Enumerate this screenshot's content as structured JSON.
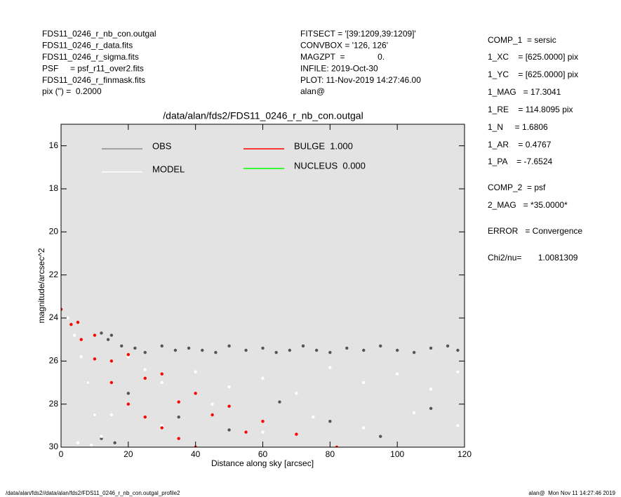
{
  "chart_data": {
    "type": "scatter",
    "title": "/data/alan/fds2/FDS11_0246_r_nb_con.outgal",
    "x_label": "Distance along sky [arcsec]",
    "y_label": "magnitude/arcsec^2",
    "xlim": [
      0,
      120
    ],
    "ylim": [
      30,
      15
    ],
    "xticks": [
      0,
      20,
      40,
      60,
      80,
      100,
      120
    ],
    "yticks": [
      16,
      18,
      20,
      22,
      24,
      26,
      28,
      30
    ],
    "plot_background": "#e3e3e3",
    "series": [
      {
        "name": "OBS",
        "color": "#555555",
        "legend_color": "#8c8c8c",
        "x": [
          10,
          12,
          14,
          15,
          18,
          22,
          25,
          30,
          34,
          38,
          42,
          46,
          50,
          55,
          60,
          64,
          68,
          72,
          76,
          80,
          85,
          90,
          95,
          100,
          105,
          110,
          115,
          118,
          20,
          35,
          50,
          65,
          80,
          95,
          110,
          8,
          12,
          16
        ],
        "y": [
          28.5,
          24.7,
          25.0,
          24.8,
          25.3,
          25.4,
          25.6,
          25.3,
          25.5,
          25.4,
          25.5,
          25.6,
          25.3,
          25.5,
          25.4,
          25.6,
          25.5,
          25.3,
          25.5,
          25.6,
          25.4,
          25.5,
          25.3,
          25.5,
          25.6,
          25.4,
          25.3,
          25.5,
          27.5,
          28.6,
          29.2,
          27.9,
          28.8,
          29.5,
          28.2,
          27.0,
          29.6,
          29.8
        ]
      },
      {
        "name": "MODEL",
        "color": "#ffffff",
        "legend_color": "#ffffff",
        "x": [
          2,
          4,
          6,
          8,
          10,
          12,
          15,
          20,
          25,
          30,
          40,
          50,
          60,
          70,
          80,
          90,
          100,
          110,
          118,
          15,
          30,
          45,
          60,
          75,
          90,
          105,
          118,
          5,
          9
        ],
        "y": [
          24.0,
          24.8,
          25.8,
          27.0,
          28.5,
          29.5,
          26.0,
          25.8,
          26.4,
          27.0,
          26.5,
          27.2,
          26.8,
          27.5,
          26.3,
          27.0,
          26.6,
          27.3,
          26.5,
          28.5,
          29.0,
          28.0,
          29.3,
          28.6,
          29.1,
          28.4,
          29.0,
          29.8,
          29.9
        ]
      },
      {
        "name": "BULGE  1.000",
        "color": "#ff0000",
        "legend_color": "#ff0000",
        "x": [
          0,
          5,
          10,
          20,
          30,
          40,
          50,
          60,
          70,
          82,
          3,
          6,
          10,
          15,
          20,
          25,
          30,
          35,
          40,
          15,
          25,
          35,
          45,
          55
        ],
        "y": [
          23.6,
          24.2,
          24.8,
          25.7,
          26.6,
          27.5,
          28.1,
          28.8,
          29.4,
          30.0,
          24.3,
          25.0,
          25.9,
          27.0,
          28.0,
          28.6,
          29.1,
          29.6,
          30.0,
          26.0,
          26.8,
          27.9,
          28.5,
          29.3
        ]
      },
      {
        "name": "NUCLEUS  0.000",
        "color": "#00ff00",
        "legend_color": "#00ff00",
        "x": [],
        "y": []
      }
    ],
    "header_left": [
      "FDS11_0246_r_nb_con.outgal",
      "FDS11_0246_r_data.fits",
      "FDS11_0246_r_sigma.fits",
      "PSF     = psf_r11_over2.fits",
      "FDS11_0246_r_finmask.fits",
      "pix (\") =  0.2000"
    ],
    "header_mid": [
      "FITSECT = '[39:1209,39:1209]'",
      "CONVBOX = '126, 126'",
      "MAGZPT  =              0.",
      "INFILE: 2019-Oct-30",
      "PLOT: 11-Nov-2019 14:27:46.00",
      "alan@"
    ],
    "right_panel": [
      "COMP_1  = sersic",
      "1_XC    = [625.0000] pix",
      "1_YC    = [625.0000] pix",
      "1_MAG   = 17.3041",
      "1_RE    = 114.8095 pix",
      "1_N     = 1.6806",
      "1_AR    = 0.4767",
      "1_PA    = -7.6524",
      "COMP_2  = psf",
      "2_MAG   = *35.0000*",
      "ERROR   = Convergence",
      "Chi2/nu=       1.0081309"
    ],
    "footer_left": "/data/alan/fds2//data/alan/fds2/FDS11_0246_r_nb_con.outgal_profile2",
    "footer_right": "alan@  Mon Nov 11 14:27:46 2019"
  }
}
